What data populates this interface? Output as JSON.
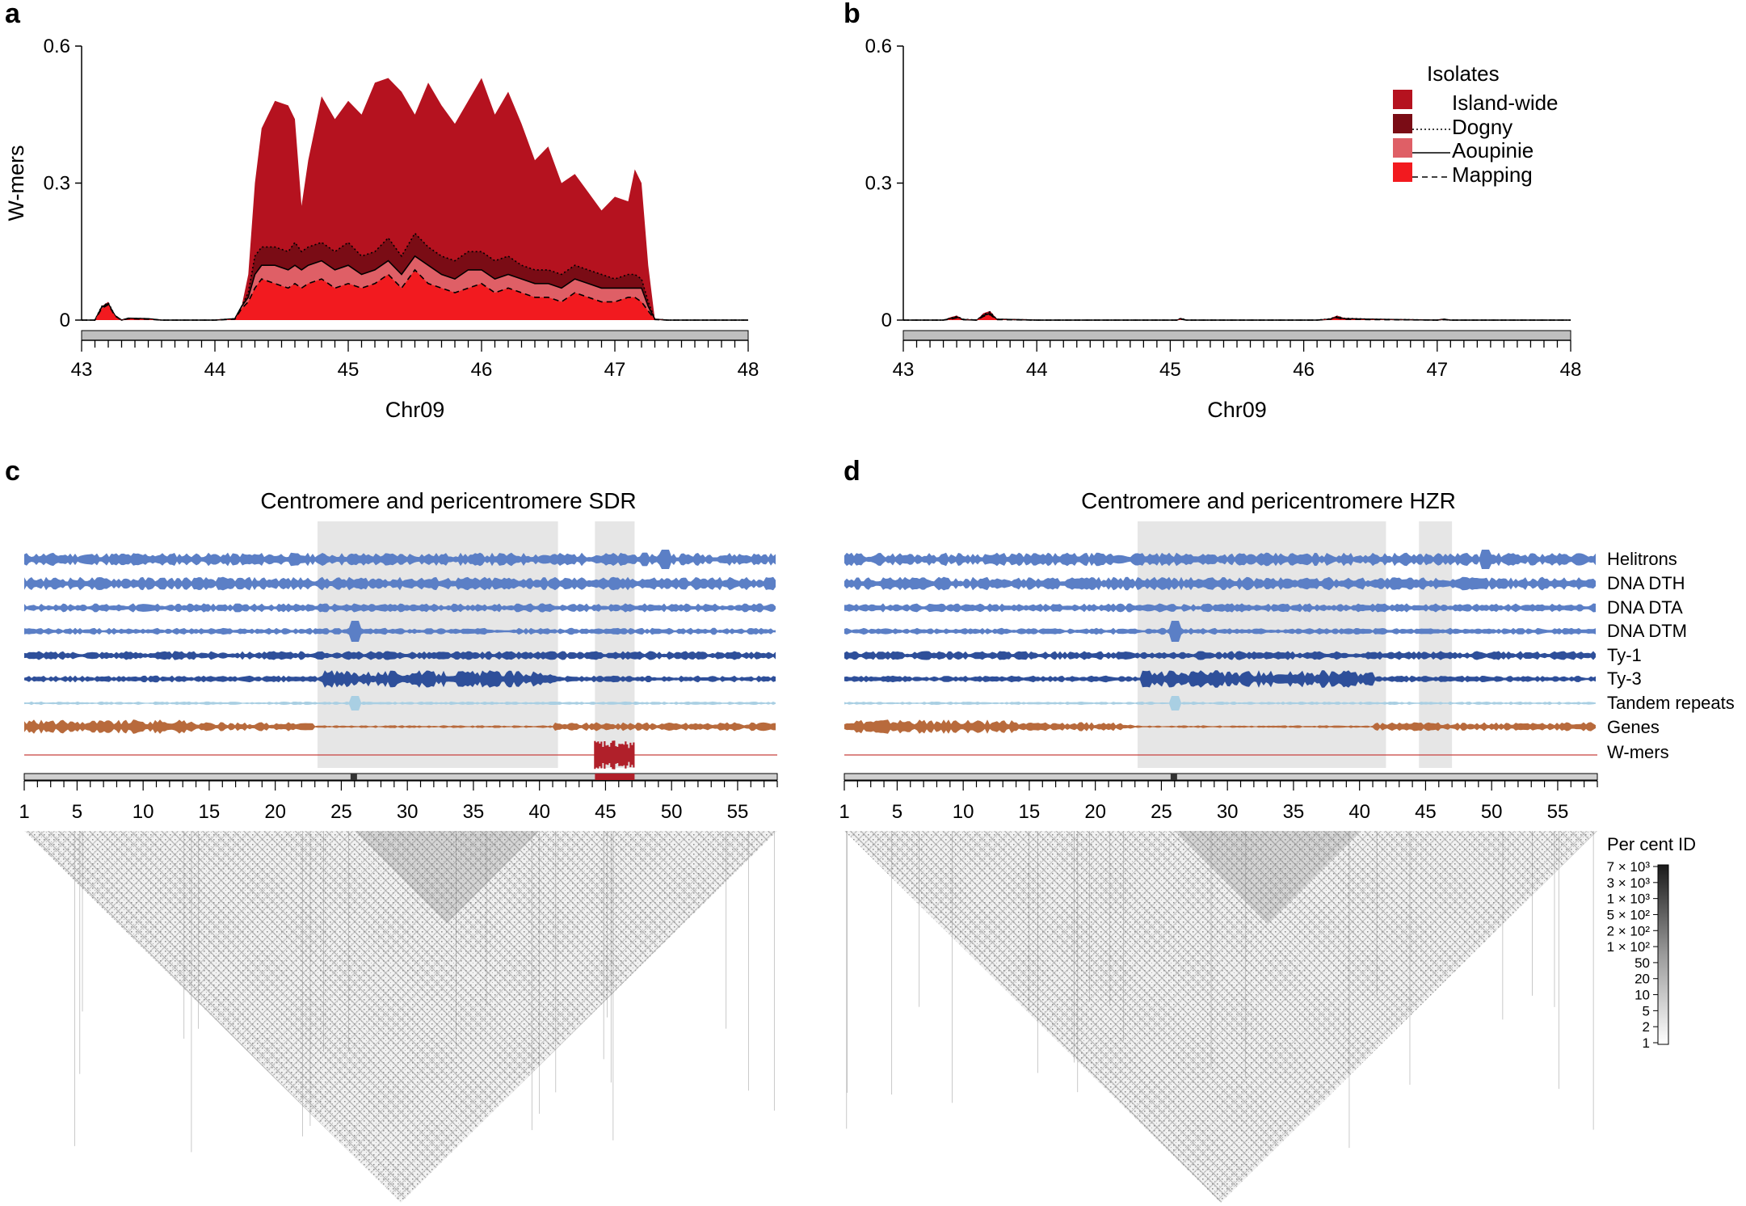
{
  "panels": {
    "a": "a",
    "b": "b",
    "c": "c",
    "d": "d"
  },
  "colors": {
    "island_wide": "#b5121f",
    "dogny": "#7a0c15",
    "aoupinie": "#df5f66",
    "mapping": "#f21a1f",
    "te_blue": "#5b7fc6",
    "dark_blue": "#2e4f9a",
    "light_blue": "#a9cfe3",
    "genes": "#b86a3c",
    "wmers_line": "#c8423f",
    "highlight": "#e6e6e6",
    "chrom_bar": "#bfbfbf"
  },
  "chart_data": [
    {
      "panel": "a",
      "type": "area",
      "xlabel": "Chr09",
      "ylabel": "W-mers",
      "xlim": [
        43,
        48
      ],
      "ylim": [
        0,
        0.6
      ],
      "xticks": [
        "43",
        "44",
        "45",
        "46",
        "47",
        "48"
      ],
      "yticks": [
        "0",
        "0.3",
        "0.6"
      ],
      "x": [
        43.0,
        43.1,
        43.15,
        43.2,
        43.25,
        43.3,
        43.35,
        43.5,
        43.6,
        44.0,
        44.15,
        44.2,
        44.25,
        44.3,
        44.35,
        44.45,
        44.55,
        44.6,
        44.65,
        44.7,
        44.8,
        44.9,
        45.0,
        45.1,
        45.2,
        45.3,
        45.4,
        45.5,
        45.6,
        45.7,
        45.8,
        45.9,
        46.0,
        46.1,
        46.2,
        46.3,
        46.4,
        46.5,
        46.6,
        46.7,
        46.8,
        46.9,
        47.0,
        47.1,
        47.15,
        47.2,
        47.25,
        47.3,
        47.4,
        48.0
      ],
      "series": [
        {
          "name": "Island-wide",
          "values": [
            0.0,
            0.0,
            0.03,
            0.04,
            0.01,
            0.0,
            0.005,
            0.003,
            0.0,
            0.0,
            0.003,
            0.03,
            0.1,
            0.3,
            0.42,
            0.48,
            0.47,
            0.44,
            0.25,
            0.35,
            0.49,
            0.44,
            0.48,
            0.45,
            0.52,
            0.53,
            0.5,
            0.45,
            0.52,
            0.47,
            0.43,
            0.48,
            0.53,
            0.45,
            0.5,
            0.43,
            0.35,
            0.38,
            0.3,
            0.32,
            0.28,
            0.24,
            0.27,
            0.26,
            0.33,
            0.3,
            0.12,
            0.002,
            0.0,
            0.0
          ]
        },
        {
          "name": "Dogny",
          "values": [
            0.0,
            0.0,
            0.03,
            0.038,
            0.01,
            0.0,
            0.004,
            0.003,
            0.0,
            0.0,
            0.003,
            0.03,
            0.06,
            0.14,
            0.16,
            0.16,
            0.15,
            0.17,
            0.15,
            0.16,
            0.17,
            0.15,
            0.17,
            0.14,
            0.15,
            0.18,
            0.14,
            0.19,
            0.16,
            0.14,
            0.13,
            0.15,
            0.15,
            0.13,
            0.14,
            0.12,
            0.11,
            0.11,
            0.1,
            0.12,
            0.11,
            0.1,
            0.09,
            0.1,
            0.1,
            0.09,
            0.04,
            0.002,
            0.0,
            0.0
          ]
        },
        {
          "name": "Aoupinie",
          "values": [
            0.0,
            0.0,
            0.028,
            0.036,
            0.01,
            0.0,
            0.004,
            0.003,
            0.0,
            0.0,
            0.003,
            0.03,
            0.05,
            0.1,
            0.12,
            0.12,
            0.11,
            0.12,
            0.11,
            0.12,
            0.13,
            0.11,
            0.12,
            0.1,
            0.11,
            0.13,
            0.1,
            0.14,
            0.12,
            0.1,
            0.09,
            0.11,
            0.11,
            0.09,
            0.1,
            0.09,
            0.08,
            0.08,
            0.07,
            0.09,
            0.08,
            0.07,
            0.07,
            0.07,
            0.07,
            0.07,
            0.03,
            0.002,
            0.0,
            0.0
          ]
        },
        {
          "name": "Mapping",
          "values": [
            0.0,
            0.0,
            0.025,
            0.034,
            0.009,
            0.0,
            0.003,
            0.002,
            0.0,
            0.0,
            0.002,
            0.025,
            0.04,
            0.07,
            0.09,
            0.08,
            0.07,
            0.08,
            0.07,
            0.08,
            0.09,
            0.07,
            0.08,
            0.07,
            0.08,
            0.1,
            0.07,
            0.11,
            0.08,
            0.07,
            0.06,
            0.07,
            0.08,
            0.06,
            0.07,
            0.06,
            0.05,
            0.05,
            0.04,
            0.06,
            0.05,
            0.04,
            0.04,
            0.05,
            0.05,
            0.04,
            0.02,
            0.001,
            0.0,
            0.0
          ]
        }
      ]
    },
    {
      "panel": "b",
      "type": "area",
      "xlabel": "Chr09",
      "ylabel": "",
      "xlim": [
        43,
        48
      ],
      "ylim": [
        0,
        0.6
      ],
      "xticks": [
        "43",
        "44",
        "45",
        "46",
        "47",
        "48"
      ],
      "yticks": [
        "0",
        "0.3",
        "0.6"
      ],
      "x": [
        43.0,
        43.3,
        43.35,
        43.4,
        43.45,
        43.55,
        43.6,
        43.65,
        43.7,
        44.0,
        45.05,
        45.08,
        45.12,
        46.1,
        46.2,
        46.25,
        46.3,
        46.5,
        47.0,
        47.05,
        47.1,
        48.0
      ],
      "series": [
        {
          "name": "Island-wide",
          "values": [
            0.0,
            0.0,
            0.006,
            0.01,
            0.002,
            0.0,
            0.015,
            0.02,
            0.003,
            0.0,
            0.0,
            0.005,
            0.0,
            0.0,
            0.004,
            0.01,
            0.005,
            0.003,
            0.0,
            0.003,
            0.0,
            0.0
          ]
        },
        {
          "name": "Dogny",
          "values": [
            0.0,
            0.0,
            0.004,
            0.008,
            0.002,
            0.0,
            0.012,
            0.018,
            0.002,
            0.0,
            0.0,
            0.004,
            0.0,
            0.0,
            0.003,
            0.008,
            0.004,
            0.002,
            0.0,
            0.002,
            0.0,
            0.0
          ]
        },
        {
          "name": "Aoupinie",
          "values": [
            0.0,
            0.0,
            0.003,
            0.006,
            0.001,
            0.0,
            0.01,
            0.014,
            0.002,
            0.0,
            0.0,
            0.003,
            0.0,
            0.0,
            0.002,
            0.006,
            0.003,
            0.002,
            0.0,
            0.002,
            0.0,
            0.0
          ]
        },
        {
          "name": "Mapping",
          "values": [
            0.0,
            0.0,
            0.002,
            0.005,
            0.001,
            0.0,
            0.008,
            0.012,
            0.001,
            0.0,
            0.0,
            0.002,
            0.0,
            0.0,
            0.002,
            0.005,
            0.002,
            0.001,
            0.0,
            0.001,
            0.0,
            0.0
          ]
        }
      ]
    },
    {
      "panel": "c",
      "type": "heatmap",
      "title": "Centromere and pericentromere SDR",
      "xlim": [
        1,
        58
      ],
      "xticks": [
        "1",
        "5",
        "10",
        "15",
        "20",
        "25",
        "30",
        "35",
        "40",
        "45",
        "50",
        "55"
      ],
      "highlight_regions": [
        [
          23.2,
          41.4
        ],
        [
          44.2,
          47.2
        ]
      ],
      "tracks": [
        "Helitrons",
        "DNA DTH",
        "DNA DTA",
        "DNA DTM",
        "Ty-1",
        "Ty-3",
        "Tandem repeats",
        "Genes",
        "W-mers"
      ],
      "wmers_block": [
        44.2,
        47.2
      ]
    },
    {
      "panel": "d",
      "type": "heatmap",
      "title": "Centromere and pericentromere HZR",
      "xlim": [
        1,
        58
      ],
      "xticks": [
        "1",
        "5",
        "10",
        "15",
        "20",
        "25",
        "30",
        "35",
        "40",
        "45",
        "50",
        "55"
      ],
      "highlight_regions": [
        [
          23.2,
          42.0
        ],
        [
          44.5,
          47.0
        ]
      ],
      "tracks": [
        "Helitrons",
        "DNA DTH",
        "DNA DTA",
        "DNA DTM",
        "Ty-1",
        "Ty-3",
        "Tandem repeats",
        "Genes",
        "W-mers"
      ],
      "colorbar": {
        "title": "Per cent ID",
        "ticks": [
          "7 × 10³",
          "3 × 10³",
          "1 × 10³",
          "5 × 10²",
          "2 × 10²",
          "1 × 10²",
          "50",
          "20",
          "10",
          "5",
          "2",
          "1"
        ]
      }
    }
  ],
  "legend": {
    "title": "Isolates",
    "items": [
      "Island-wide",
      "Dogny",
      "Aoupinie",
      "Mapping"
    ]
  }
}
